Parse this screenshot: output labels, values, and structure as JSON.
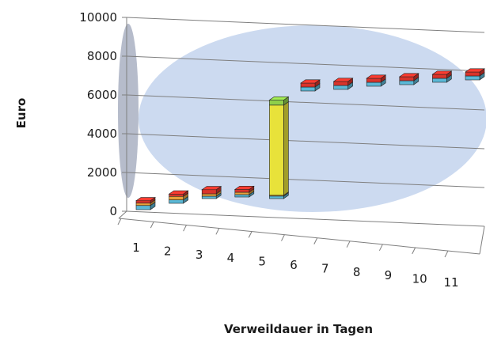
{
  "chart_data": {
    "type": "bar",
    "style": "3d-stacked-columns-perspective",
    "title": "",
    "xlabel": "Verweildauer in Tagen",
    "ylabel": "Euro",
    "ylim": [
      0,
      10000
    ],
    "yticks": [
      "0",
      "2000",
      "4000",
      "6000",
      "8000",
      "10000"
    ],
    "categories": [
      "1",
      "2",
      "3",
      "4",
      "5",
      "6",
      "7",
      "8",
      "9",
      "10",
      "11"
    ],
    "series": [
      {
        "color": "#5bb8d6",
        "values": [
          300,
          250,
          100,
          100,
          150,
          100,
          100,
          100,
          100,
          100,
          100
        ]
      },
      {
        "color": "#e8a13a",
        "values": [
          50,
          250,
          150,
          150,
          50,
          0,
          0,
          0,
          0,
          0,
          0
        ]
      },
      {
        "color": "#e8e23a",
        "values": [
          0,
          0,
          0,
          0,
          5400,
          0,
          0,
          0,
          0,
          0,
          0
        ]
      },
      {
        "color": "#8fcf4a",
        "values": [
          0,
          0,
          0,
          0,
          300,
          0,
          0,
          0,
          0,
          0,
          0
        ]
      },
      {
        "color": "#d9342b",
        "values": [
          100,
          150,
          300,
          200,
          0,
          6000,
          6150,
          6300,
          6450,
          6600,
          6750
        ]
      }
    ],
    "grid": true,
    "legend": "none"
  },
  "icons": {
    "background_ellipse": "light-blue-ellipse",
    "side_ellipse": "grey-ellipse"
  }
}
